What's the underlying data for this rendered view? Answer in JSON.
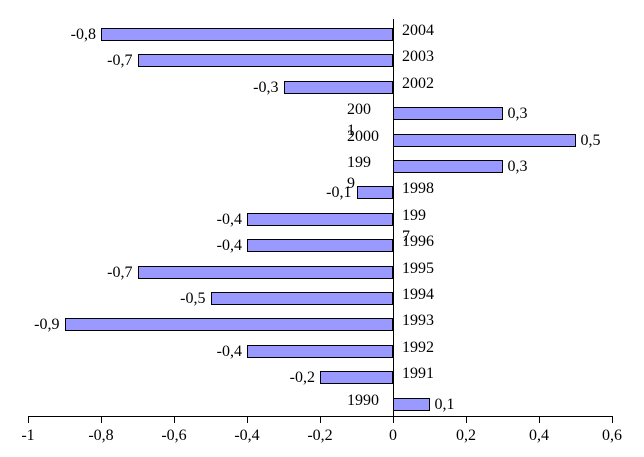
{
  "chart_data": {
    "type": "bar",
    "orientation": "horizontal",
    "title": "",
    "xlabel": "",
    "ylabel": "",
    "grid": false,
    "legend": false,
    "categories": [
      "2004",
      "2003",
      "2002",
      "2001",
      "2000",
      "1999",
      "1998",
      "1997",
      "1996",
      "1995",
      "1994",
      "1993",
      "1992",
      "1991",
      "1990"
    ],
    "category_display": [
      "2004",
      "2003",
      "2002",
      "200\n1",
      "2000",
      "199\n9",
      "1998",
      "199\n7",
      "1996",
      "1995",
      "1994",
      "1993",
      "1992",
      "1991",
      "1990"
    ],
    "values": [
      -0.8,
      -0.7,
      -0.3,
      0.3,
      0.5,
      0.3,
      -0.1,
      -0.4,
      -0.4,
      -0.7,
      -0.5,
      -0.9,
      -0.4,
      -0.2,
      0.1
    ],
    "value_labels": [
      "-0,8",
      "-0,7",
      "-0,3",
      "0,3",
      "0,5",
      "0,3",
      "-0,1",
      "-0,4",
      "-0,4",
      "-0,7",
      "-0,5",
      "-0,9",
      "-0,4",
      "-0,2",
      "0,1"
    ],
    "x_ticks": [
      -1,
      -0.8,
      -0.6,
      -0.4,
      -0.2,
      0,
      0.2,
      0.4,
      0.6
    ],
    "x_tick_labels": [
      "-1",
      "-0,8",
      "-0,6",
      "-0,4",
      "-0,2",
      "0",
      "0,2",
      "0,4",
      "0,6"
    ],
    "xlim": [
      -1,
      0.6
    ],
    "decimal_separator": ",",
    "colors": {
      "bar_fill": "#9999FF",
      "bar_border": "#000000",
      "axis": "#000000",
      "text": "#000000",
      "background": "#FFFFFF"
    }
  }
}
